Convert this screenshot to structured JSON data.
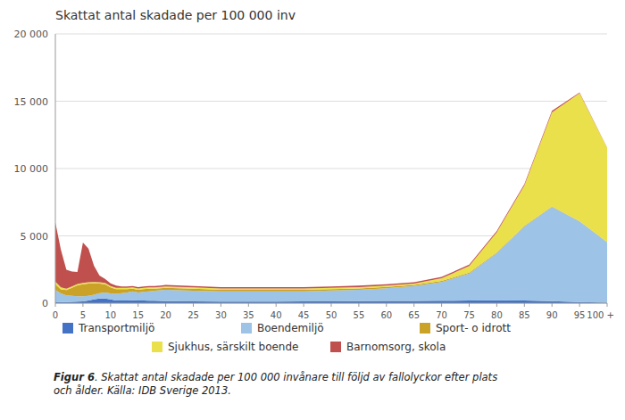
{
  "chart_data": {
    "type": "area",
    "stacked": true,
    "title": "Skattat antal skadade per 100 000 inv",
    "x": [
      0,
      1,
      2,
      3,
      4,
      5,
      6,
      7,
      8,
      9,
      10,
      11,
      12,
      13,
      14,
      15,
      16,
      17,
      18,
      19,
      20,
      25,
      30,
      35,
      40,
      45,
      50,
      55,
      60,
      65,
      70,
      75,
      80,
      85,
      90,
      95,
      100
    ],
    "series": [
      {
        "name": "Transportmiljö",
        "color": "#4472C4",
        "values": [
          100,
          80,
          80,
          100,
          120,
          130,
          200,
          280,
          350,
          350,
          280,
          200,
          200,
          200,
          220,
          200,
          200,
          180,
          180,
          160,
          150,
          130,
          120,
          120,
          120,
          130,
          140,
          150,
          160,
          170,
          180,
          200,
          220,
          200,
          150,
          80,
          30
        ]
      },
      {
        "name": "Boendemiljö",
        "color": "#9DC3E6",
        "values": [
          900,
          650,
          500,
          450,
          400,
          380,
          350,
          350,
          400,
          450,
          450,
          500,
          550,
          600,
          650,
          600,
          650,
          700,
          750,
          800,
          850,
          800,
          750,
          750,
          750,
          750,
          800,
          850,
          950,
          1100,
          1400,
          2000,
          3500,
          5500,
          7000,
          6000,
          4500
        ]
      },
      {
        "name": "Sport- o idrott",
        "color": "#C9A227",
        "values": [
          400,
          300,
          400,
          600,
          800,
          900,
          900,
          850,
          700,
          600,
          450,
          350,
          300,
          250,
          200,
          200,
          200,
          200,
          150,
          150,
          150,
          150,
          130,
          130,
          120,
          120,
          100,
          100,
          100,
          80,
          70,
          60,
          50,
          40,
          30,
          20,
          10
        ]
      },
      {
        "name": "Sjukhus, särskilt boende",
        "color": "#E9E04B",
        "values": [
          200,
          150,
          100,
          100,
          100,
          100,
          100,
          100,
          100,
          100,
          100,
          100,
          100,
          100,
          100,
          100,
          100,
          100,
          100,
          100,
          100,
          100,
          100,
          100,
          100,
          100,
          100,
          100,
          100,
          100,
          200,
          500,
          1500,
          3000,
          7000,
          9500,
          7000
        ]
      },
      {
        "name": "Barnomsorg, skola",
        "color": "#C0504D",
        "values": [
          4400,
          2800,
          1400,
          1100,
          900,
          3000,
          2500,
          1200,
          500,
          300,
          200,
          150,
          100,
          100,
          100,
          100,
          100,
          100,
          100,
          100,
          100,
          100,
          100,
          100,
          100,
          100,
          100,
          100,
          100,
          100,
          100,
          100,
          100,
          100,
          100,
          50,
          20
        ]
      }
    ],
    "xlim": [
      0,
      100
    ],
    "xticks": [
      0,
      5,
      10,
      15,
      20,
      25,
      30,
      35,
      40,
      45,
      50,
      55,
      60,
      65,
      70,
      75,
      80,
      85,
      90,
      95,
      {
        "value": 100,
        "label": "100 +"
      }
    ],
    "ylim": [
      0,
      20000
    ],
    "yticks": [
      0,
      {
        "value": 5000,
        "label": "5 000"
      },
      {
        "value": 10000,
        "label": "10 000"
      },
      {
        "value": 15000,
        "label": "15 000"
      },
      {
        "value": 20000,
        "label": "20 000"
      }
    ],
    "grid": true,
    "legend": "bottom",
    "annotations": [
      "Figur 6",
      ". Skattat antal skadade per 100 000 invånare till följd av fallolyckor efter plats\noch ålder. Källa: IDB Sverige 2013."
    ]
  }
}
